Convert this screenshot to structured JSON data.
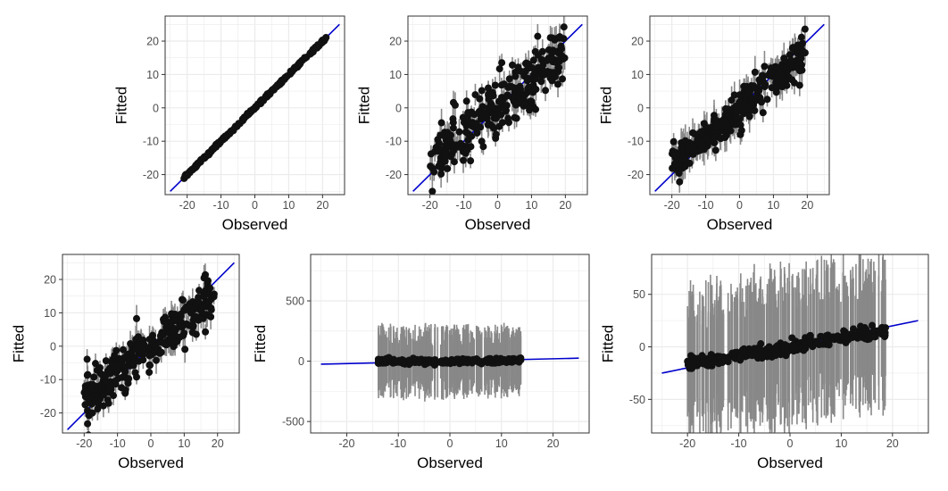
{
  "figure": {
    "background": "#ffffff"
  },
  "colors": {
    "points": "#111111",
    "intervals": "#888888",
    "fit_line": "#0000cc",
    "grid": "#ebebeb",
    "panel_border": "#333333"
  },
  "chart_data": [
    {
      "type": "scatter",
      "xlabel": "Observed",
      "ylabel": "Fitted",
      "xlim": [
        -26.5,
        26.5
      ],
      "ylim": [
        -26,
        27.5
      ],
      "xticks": [
        -20,
        -10,
        0,
        10,
        20
      ],
      "yticks": [
        -20,
        -10,
        0,
        10,
        20
      ],
      "x_tick_labels": [
        "-20",
        "-10",
        "0",
        "10",
        "20"
      ],
      "y_tick_labels": [
        "-20",
        "-10",
        "0",
        "10",
        "20"
      ],
      "reference_line": {
        "intercept": 0,
        "slope": 1,
        "x_range": [
          -25,
          25
        ]
      },
      "points": {
        "n": 300,
        "x_range": [
          -21,
          21.5
        ],
        "fit_slope": 1.0,
        "fit_intercept": 0,
        "spread": 0.2
      },
      "intervals": {
        "half_width": 0.2
      },
      "grid": true
    },
    {
      "type": "scatter",
      "xlabel": "Observed",
      "ylabel": "Fitted",
      "xlim": [
        -26.5,
        26.5
      ],
      "ylim": [
        -26,
        27.5
      ],
      "xticks": [
        -20,
        -10,
        0,
        10,
        20
      ],
      "yticks": [
        -20,
        -10,
        0,
        10,
        20
      ],
      "x_tick_labels": [
        "-20",
        "-10",
        "0",
        "10",
        "20"
      ],
      "y_tick_labels": [
        "-20",
        "-10",
        "0",
        "10",
        "20"
      ],
      "reference_line": {
        "intercept": 0,
        "slope": 1,
        "x_range": [
          -25,
          25
        ]
      },
      "points": {
        "n": 300,
        "x_range": [
          -20,
          20
        ],
        "fit_slope": 0.8,
        "fit_intercept": 0,
        "spread": 4.5
      },
      "intervals": {
        "half_width": 3
      },
      "grid": true
    },
    {
      "type": "scatter",
      "xlabel": "Observed",
      "ylabel": "Fitted",
      "xlim": [
        -26.5,
        26.5
      ],
      "ylim": [
        -26,
        27.5
      ],
      "xticks": [
        -20,
        -10,
        0,
        10,
        20
      ],
      "yticks": [
        -20,
        -10,
        0,
        10,
        20
      ],
      "x_tick_labels": [
        "-20",
        "-10",
        "0",
        "10",
        "20"
      ],
      "y_tick_labels": [
        "-20",
        "-10",
        "0",
        "10",
        "20"
      ],
      "reference_line": {
        "intercept": 0,
        "slope": 1,
        "x_range": [
          -25,
          25
        ]
      },
      "points": {
        "n": 300,
        "x_range": [
          -20,
          19.5
        ],
        "fit_slope": 0.85,
        "fit_intercept": 0,
        "spread": 3
      },
      "intervals": {
        "half_width": 3.5
      },
      "grid": true
    },
    {
      "type": "scatter",
      "xlabel": "Observed",
      "ylabel": "Fitted",
      "xlim": [
        -26.5,
        26.5
      ],
      "ylim": [
        -26,
        27.5
      ],
      "xticks": [
        -20,
        -10,
        0,
        10,
        20
      ],
      "yticks": [
        -20,
        -10,
        0,
        10,
        20
      ],
      "x_tick_labels": [
        "-20",
        "-10",
        "0",
        "10",
        "20"
      ],
      "y_tick_labels": [
        "-20",
        "-10",
        "0",
        "10",
        "20"
      ],
      "reference_line": {
        "intercept": 0,
        "slope": 1,
        "x_range": [
          -25,
          25
        ]
      },
      "points": {
        "n": 300,
        "x_range": [
          -20,
          19
        ],
        "fit_slope": 0.8,
        "fit_intercept": 0,
        "spread": 3.5
      },
      "intervals": {
        "half_width": 3
      },
      "grid": true
    },
    {
      "type": "scatter",
      "xlabel": "Observed",
      "ylabel": "Fitted",
      "xlim": [
        -27,
        27
      ],
      "ylim": [
        -595,
        885
      ],
      "xticks": [
        -20,
        -10,
        0,
        10,
        20
      ],
      "yticks": [
        -500,
        0,
        500
      ],
      "x_tick_labels": [
        "-20",
        "-10",
        "0",
        "10",
        "20"
      ],
      "y_tick_labels": [
        "-500",
        "0",
        "500"
      ],
      "reference_line": {
        "intercept": 0,
        "slope": 1,
        "x_range": [
          -25,
          25
        ]
      },
      "points": {
        "n": 300,
        "x_range": [
          -14,
          14
        ],
        "fit_slope": 0.3,
        "fit_intercept": 0,
        "spread": 10
      },
      "intervals": {
        "half_width": 220
      },
      "grid": true
    },
    {
      "type": "scatter",
      "xlabel": "Observed",
      "ylabel": "Fitted",
      "xlim": [
        -27,
        27
      ],
      "ylim": [
        -82,
        88
      ],
      "xticks": [
        -20,
        -10,
        0,
        10,
        20
      ],
      "yticks": [
        -50,
        0,
        50
      ],
      "x_tick_labels": [
        "-20",
        "-10",
        "0",
        "10",
        "20"
      ],
      "y_tick_labels": [
        "-50",
        "0",
        "50"
      ],
      "reference_line": {
        "intercept": 0,
        "slope": 1,
        "x_range": [
          -25,
          25
        ]
      },
      "points": {
        "n": 300,
        "x_range": [
          -20,
          19
        ],
        "fit_slope": 0.8,
        "fit_intercept": 0,
        "spread": 3
      },
      "intervals": {
        "half_width": 58
      },
      "grid": true
    }
  ]
}
